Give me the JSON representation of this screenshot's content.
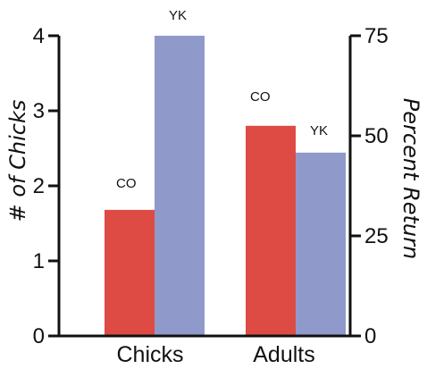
{
  "chart_data": {
    "type": "bar",
    "categories": [
      "Chicks",
      "Adults"
    ],
    "left_axis": {
      "label": "# of Chicks",
      "ticks": [
        "0",
        "1",
        "2",
        "3",
        "4"
      ],
      "ylim": [
        0,
        4
      ]
    },
    "right_axis": {
      "label": "Percent Return",
      "ticks": [
        "0",
        "25",
        "50",
        "75"
      ],
      "ylim": [
        0,
        75
      ]
    },
    "series": [
      {
        "name": "CO",
        "color": "#dd4b44",
        "axis": [
          "left",
          "right"
        ],
        "values": [
          1.68,
          52.5
        ]
      },
      {
        "name": "YK",
        "color": "#8f9acb",
        "axis": [
          "left",
          "right"
        ],
        "values": [
          4.0,
          45.8
        ]
      }
    ],
    "bar_labels": [
      {
        "category": "Chicks",
        "series": "CO",
        "text": "CO"
      },
      {
        "category": "Chicks",
        "series": "YK",
        "text": "YK"
      },
      {
        "category": "Adults",
        "series": "CO",
        "text": "CO"
      },
      {
        "category": "Adults",
        "series": "YK",
        "text": "YK"
      }
    ],
    "grid": false,
    "legend": "none"
  }
}
